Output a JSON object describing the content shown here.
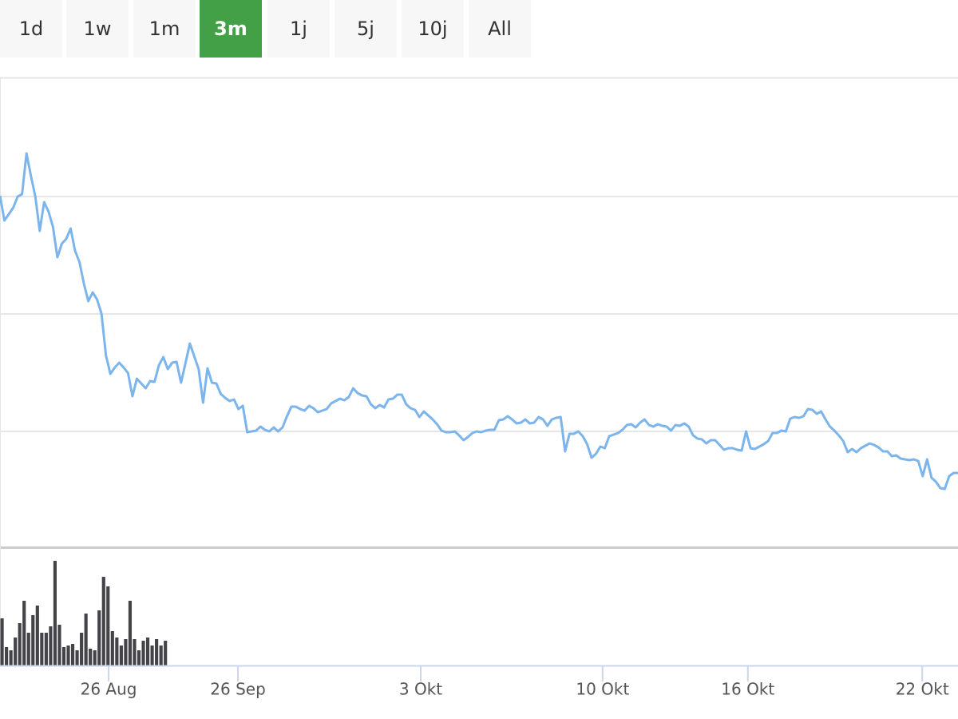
{
  "buttons": [
    {
      "label": "1d",
      "selected": false
    },
    {
      "label": "1w",
      "selected": false
    },
    {
      "label": "1m",
      "selected": false
    },
    {
      "label": "3m",
      "selected": true
    },
    {
      "label": "1j",
      "selected": false
    },
    {
      "label": "5j",
      "selected": false
    },
    {
      "label": "10j",
      "selected": false
    },
    {
      "label": "All",
      "selected": false
    }
  ],
  "chart_data": [
    {
      "type": "line",
      "color": "#7cb5ec",
      "values": [
        441,
        410,
        418,
        426,
        440,
        443,
        494,
        466,
        440,
        397,
        433,
        421,
        402,
        364,
        381,
        387,
        400,
        372,
        358,
        331,
        309,
        320,
        311,
        293,
        241,
        218,
        226,
        232,
        226,
        219,
        190,
        212,
        206,
        200,
        209,
        208,
        229,
        239,
        224,
        232,
        233,
        207,
        231,
        256,
        240,
        224,
        182,
        225,
        207,
        206,
        193,
        188,
        184,
        186,
        174,
        178,
        145,
        146,
        147,
        152,
        148,
        146,
        151,
        146,
        151,
        165,
        177,
        177,
        174,
        172,
        178,
        175,
        170,
        172,
        174,
        181,
        184,
        187,
        185,
        189,
        200,
        194,
        191,
        190,
        180,
        175,
        179,
        176,
        186,
        187,
        192,
        192,
        180,
        175,
        173,
        164,
        171,
        166,
        161,
        155,
        147,
        145,
        145,
        146,
        141,
        135,
        139,
        144,
        146,
        145,
        147,
        148,
        148,
        160,
        161,
        165,
        161,
        156,
        157,
        161,
        156,
        157,
        164,
        161,
        153,
        161,
        163,
        164,
        121,
        143,
        143,
        146,
        140,
        130,
        113,
        118,
        127,
        125,
        140,
        142,
        144,
        148,
        154,
        155,
        151,
        157,
        161,
        154,
        152,
        155,
        153,
        152,
        147,
        154,
        153,
        156,
        152,
        141,
        137,
        136,
        131,
        135,
        135,
        129,
        123,
        125,
        125,
        123,
        122,
        146,
        125,
        124,
        127,
        130,
        134,
        144,
        144,
        147,
        146,
        162,
        164,
        163,
        165,
        174,
        173,
        168,
        171,
        161,
        152,
        147,
        141,
        134,
        120,
        124,
        120,
        125,
        128,
        131,
        129,
        126,
        121,
        121,
        115,
        116,
        112,
        111,
        110,
        111,
        109,
        90,
        111,
        88,
        83,
        75,
        74,
        90,
        94,
        94
      ],
      "xlim": [
        0,
        217
      ],
      "ylim": [
        0,
        589
      ],
      "yticks": [
        146,
        293,
        440
      ],
      "grid": true
    },
    {
      "type": "bar",
      "color": "#434348",
      "values": [
        59,
        23,
        19,
        35,
        53,
        81,
        41,
        63,
        75,
        41,
        41,
        49,
        131,
        51,
        23,
        25,
        27,
        19,
        41,
        65,
        21,
        19,
        69,
        111,
        99,
        43,
        35,
        25,
        33,
        81,
        33,
        19,
        31,
        35,
        25,
        33,
        25,
        31
      ],
      "xlim": [
        0,
        217
      ],
      "ylim": [
        0,
        147
      ],
      "xticks": [
        {
          "value": 24.6,
          "label": "26 Aug"
        },
        {
          "value": 53.9,
          "label": "26 Sep"
        },
        {
          "value": 95.3,
          "label": "3 Okt"
        },
        {
          "value": 136.5,
          "label": "10 Okt"
        },
        {
          "value": 169.4,
          "label": "16 Okt"
        },
        {
          "value": 208.9,
          "label": "22 Okt"
        }
      ]
    }
  ]
}
